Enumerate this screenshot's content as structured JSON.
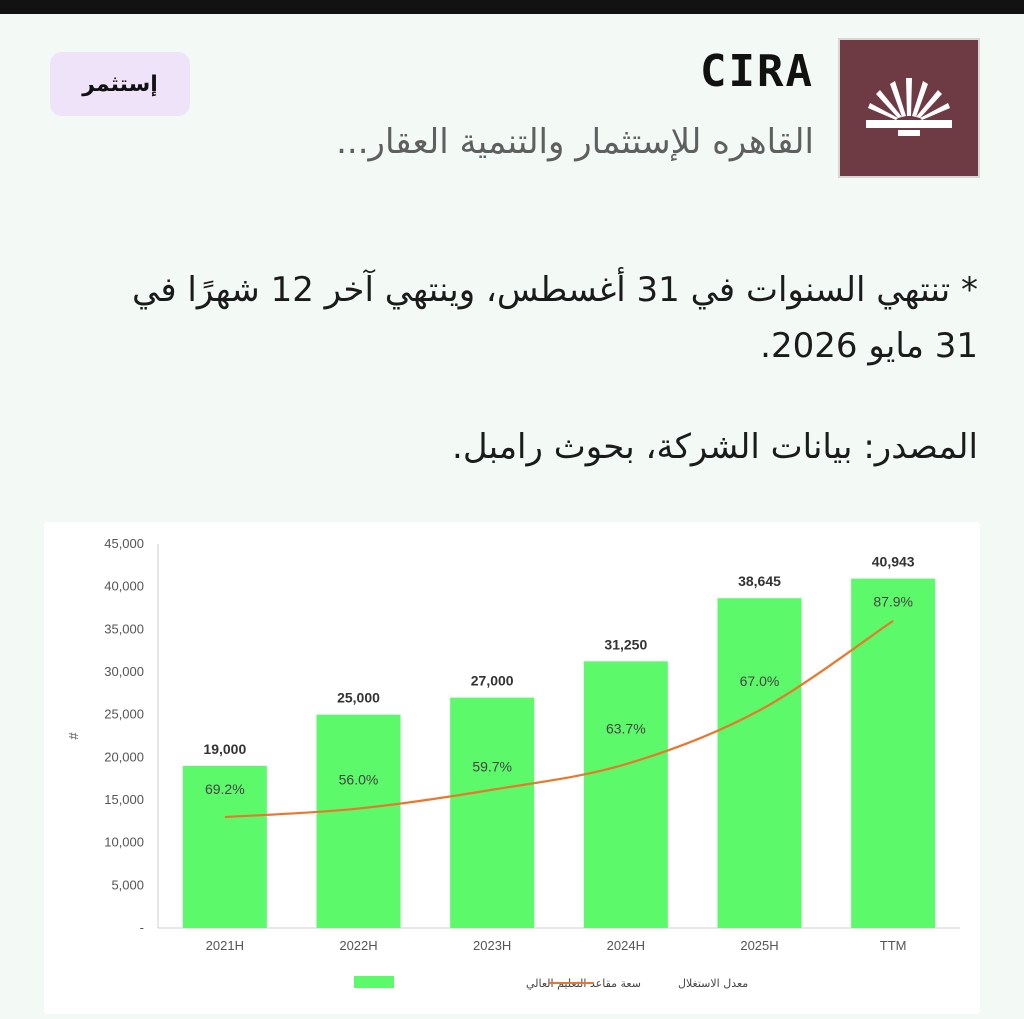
{
  "header": {
    "brand": "CIRA",
    "company_name": "القاهره للإستثمار والتنمية العقار...",
    "invest_button": "إستثمر",
    "logo_color": "#6e3b45"
  },
  "body": {
    "note": "* تنتهي السنوات في 31 أغسطس، وينتهي آخر 12 شهرًا في 31 مايو 2026.",
    "source": "المصدر: بيانات الشركة، بحوث رامبل."
  },
  "chart_data": {
    "type": "bar",
    "categories": [
      "2021H",
      "2022H",
      "2023H",
      "2024H",
      "2025H",
      "TTM"
    ],
    "series": [
      {
        "name": "سعة مقاعد التعليم العالي",
        "type": "bar",
        "values": [
          19000,
          25000,
          27000,
          31250,
          38645,
          40943
        ],
        "value_labels": [
          "19,000",
          "25,000",
          "27,000",
          "31,250",
          "38,645",
          "40,943"
        ],
        "color": "#5cf96a"
      },
      {
        "name": "معدل الاستغلال",
        "type": "line",
        "values": [
          69.2,
          56.0,
          59.7,
          63.7,
          67.0,
          87.9
        ],
        "value_labels": [
          "69.2%",
          "56.0%",
          "59.7%",
          "63.7%",
          "67.0%",
          "87.9%"
        ],
        "color": "#e8782c"
      }
    ],
    "ylabel": "#",
    "ylim": [
      0,
      45000
    ],
    "yticks": [
      "-",
      "5,000",
      "10,000",
      "15,000",
      "20,000",
      "25,000",
      "30,000",
      "35,000",
      "40,000",
      "45,000"
    ],
    "legend_position": "bottom",
    "grid": false
  }
}
